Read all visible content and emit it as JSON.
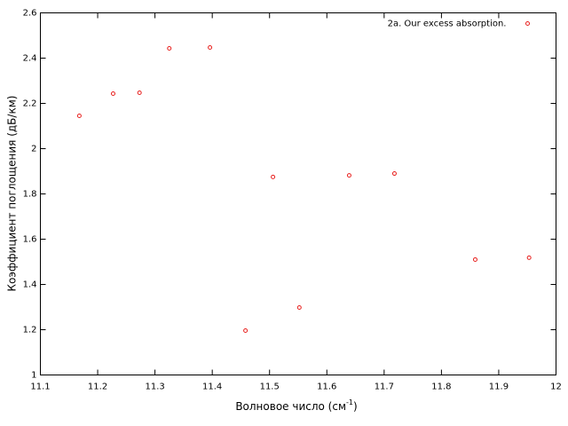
{
  "chart_data": {
    "type": "scatter",
    "xlabel": "Волновое число (см",
    "xlabel_sup": "-1",
    "xlabel_end": ")",
    "ylabel": "Коэффициент поглощения (дБ/км)",
    "series": [
      {
        "name": "2a. Our excess absorption.",
        "color": "#e8201e",
        "x": [
          11.168,
          11.227,
          11.273,
          11.325,
          11.396,
          11.458,
          11.506,
          11.552,
          11.639,
          11.718,
          11.859,
          11.953
        ],
        "values": [
          2.145,
          2.243,
          2.247,
          2.443,
          2.447,
          1.196,
          1.875,
          1.298,
          1.882,
          1.89,
          1.51,
          1.518
        ]
      }
    ],
    "xlim": [
      11.1,
      12
    ],
    "xticks": [
      11.1,
      11.2,
      11.3,
      11.4,
      11.5,
      11.6,
      11.7,
      11.8,
      11.9,
      12
    ],
    "ylim": [
      1,
      2.6
    ],
    "yticks": [
      1,
      1.2,
      1.4,
      1.6,
      1.8,
      2,
      2.2,
      2.4,
      2.6
    ],
    "grid": false,
    "legend": "top-right"
  }
}
